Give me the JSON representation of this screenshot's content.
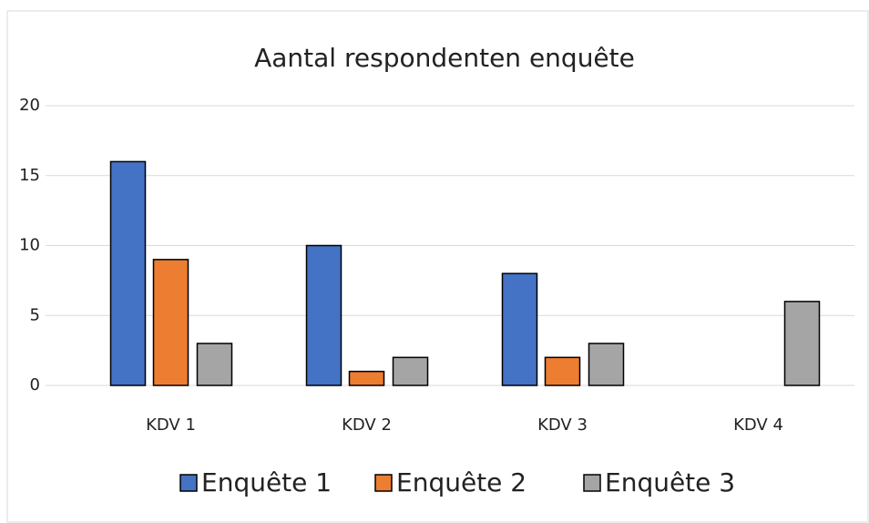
{
  "chart_data": {
    "type": "bar",
    "title": "Aantal respondenten enquête",
    "categories": [
      "KDV 1",
      "KDV 2",
      "KDV 3",
      "KDV 4"
    ],
    "series": [
      {
        "name": "Enquête 1",
        "color": "#4472c4",
        "values": [
          16,
          10,
          8,
          null
        ]
      },
      {
        "name": "Enquête 2",
        "color": "#ed7d31",
        "values": [
          9,
          1,
          2,
          null
        ]
      },
      {
        "name": "Enquête 3",
        "color": "#a5a5a5",
        "values": [
          3,
          2,
          3,
          6
        ]
      }
    ],
    "ylim": [
      0,
      20
    ],
    "yticks": [
      0,
      5,
      10,
      15,
      20
    ],
    "grid": true,
    "legend": "bottom"
  }
}
